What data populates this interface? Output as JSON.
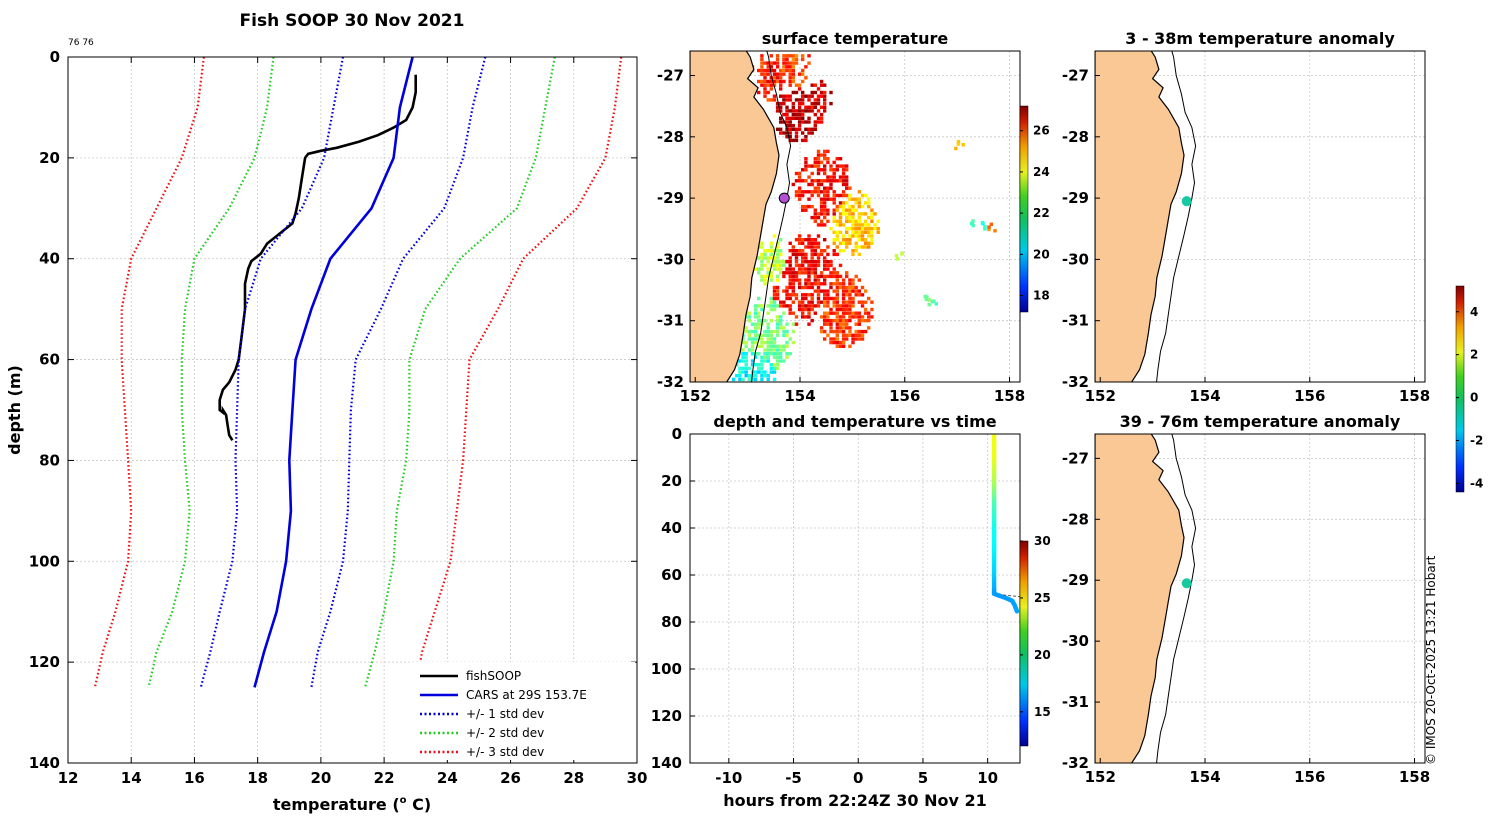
{
  "profile": {
    "title": "Fish SOOP 30 Nov 2021",
    "corner_label": "76 76",
    "xlabel": "temperature (",
    "xlabel_sup": "o",
    "xlabel_unit": " C)",
    "ylabel": "depth (m)",
    "xlim": [
      12,
      30
    ],
    "ylim": [
      0,
      140
    ],
    "xticks": [
      12,
      14,
      16,
      18,
      20,
      22,
      24,
      26,
      28,
      30
    ],
    "yticks": [
      0,
      20,
      40,
      60,
      80,
      100,
      120,
      140
    ],
    "legend": [
      {
        "label": "fishSOOP",
        "color": "#000000",
        "dash": "solid"
      },
      {
        "label": "CARS at 29S 153.7E",
        "color": "#0000dd",
        "dash": "solid"
      },
      {
        "label": "+/- 1 std dev",
        "color": "#0000dd",
        "dash": "dotted"
      },
      {
        "label": "+/- 2 std dev",
        "color": "#22cc22",
        "dash": "dotted"
      },
      {
        "label": "+/- 3 std dev",
        "color": "#ee1111",
        "dash": "dotted"
      }
    ]
  },
  "chart_data": [
    {
      "type": "line",
      "title": "Fish SOOP 30 Nov 2021",
      "xlabel": "temperature (o C)",
      "ylabel": "depth (m)",
      "xlim": [
        12,
        30
      ],
      "ylim": [
        0,
        140
      ],
      "y_reversed": true,
      "series": [
        {
          "name": "fishSOOP",
          "color": "#000000",
          "style": "solid",
          "points": [
            [
              23.0,
              3.5
            ],
            [
              23.0,
              7
            ],
            [
              22.9,
              10
            ],
            [
              22.7,
              12.5
            ],
            [
              22.3,
              14
            ],
            [
              21.8,
              15.5
            ],
            [
              21.2,
              16.8
            ],
            [
              20.5,
              18
            ],
            [
              20.0,
              18.6
            ],
            [
              19.6,
              19.2
            ],
            [
              19.5,
              20
            ],
            [
              19.4,
              24
            ],
            [
              19.3,
              28
            ],
            [
              19.2,
              31
            ],
            [
              19.1,
              33
            ],
            [
              18.7,
              35
            ],
            [
              18.3,
              37
            ],
            [
              18.1,
              39
            ],
            [
              17.8,
              40.5
            ],
            [
              17.7,
              42
            ],
            [
              17.6,
              45
            ],
            [
              17.6,
              50
            ],
            [
              17.5,
              55
            ],
            [
              17.4,
              60
            ],
            [
              17.3,
              62
            ],
            [
              17.1,
              64.5
            ],
            [
              16.9,
              66
            ],
            [
              16.8,
              68
            ],
            [
              16.8,
              70
            ],
            [
              16.9,
              70.5
            ],
            [
              16.9,
              70
            ],
            [
              17.0,
              71
            ],
            [
              17.05,
              73
            ],
            [
              17.1,
              75
            ],
            [
              17.2,
              76
            ]
          ]
        },
        {
          "name": "CARS at 29S 153.7E",
          "color": "#0000dd",
          "style": "solid",
          "points": [
            [
              22.9,
              0
            ],
            [
              22.5,
              10
            ],
            [
              22.3,
              20
            ],
            [
              21.6,
              30
            ],
            [
              20.3,
              40
            ],
            [
              19.7,
              50
            ],
            [
              19.2,
              60
            ],
            [
              19.1,
              70
            ],
            [
              19.0,
              80
            ],
            [
              19.05,
              90
            ],
            [
              18.9,
              100
            ],
            [
              18.6,
              110
            ],
            [
              18.2,
              118
            ],
            [
              17.9,
              125
            ]
          ]
        },
        {
          "name": "-1 std dev",
          "color": "#0000dd",
          "style": "dotted",
          "points": [
            [
              20.7,
              0
            ],
            [
              20.4,
              10
            ],
            [
              20.1,
              20
            ],
            [
              19.4,
              30
            ],
            [
              18.1,
              40
            ],
            [
              17.6,
              50
            ],
            [
              17.4,
              60
            ],
            [
              17.35,
              70
            ],
            [
              17.3,
              80
            ],
            [
              17.35,
              90
            ],
            [
              17.2,
              100
            ],
            [
              16.8,
              110
            ],
            [
              16.5,
              118
            ],
            [
              16.2,
              125
            ]
          ]
        },
        {
          "name": "+1 std dev",
          "color": "#0000dd",
          "style": "dotted",
          "points": [
            [
              25.2,
              0
            ],
            [
              24.8,
              10
            ],
            [
              24.5,
              20
            ],
            [
              23.9,
              30
            ],
            [
              22.6,
              40
            ],
            [
              21.9,
              50
            ],
            [
              21.1,
              60
            ],
            [
              20.95,
              70
            ],
            [
              20.9,
              80
            ],
            [
              20.85,
              90
            ],
            [
              20.7,
              100
            ],
            [
              20.3,
              110
            ],
            [
              19.9,
              118
            ],
            [
              19.7,
              125
            ]
          ]
        },
        {
          "name": "-2 std dev",
          "color": "#22cc22",
          "style": "dotted",
          "points": [
            [
              18.5,
              0
            ],
            [
              18.3,
              10
            ],
            [
              17.9,
              20
            ],
            [
              17.1,
              30
            ],
            [
              16.0,
              40
            ],
            [
              15.7,
              50
            ],
            [
              15.6,
              60
            ],
            [
              15.6,
              70
            ],
            [
              15.7,
              80
            ],
            [
              15.85,
              90
            ],
            [
              15.7,
              100
            ],
            [
              15.3,
              110
            ],
            [
              14.8,
              118
            ],
            [
              14.55,
              125
            ]
          ]
        },
        {
          "name": "+2 std dev",
          "color": "#22cc22",
          "style": "dotted",
          "points": [
            [
              27.4,
              0
            ],
            [
              27.1,
              10
            ],
            [
              26.8,
              20
            ],
            [
              26.2,
              30
            ],
            [
              24.4,
              40
            ],
            [
              23.3,
              50
            ],
            [
              22.8,
              60
            ],
            [
              22.8,
              70
            ],
            [
              22.7,
              80
            ],
            [
              22.4,
              90
            ],
            [
              22.3,
              100
            ],
            [
              22.0,
              110
            ],
            [
              21.7,
              118
            ],
            [
              21.4,
              125
            ]
          ]
        },
        {
          "name": "-3 std dev",
          "color": "#ee1111",
          "style": "dotted",
          "points": [
            [
              16.3,
              0
            ],
            [
              16.1,
              10
            ],
            [
              15.6,
              20
            ],
            [
              14.8,
              30
            ],
            [
              14.0,
              40
            ],
            [
              13.7,
              50
            ],
            [
              13.7,
              60
            ],
            [
              13.8,
              70
            ],
            [
              13.9,
              80
            ],
            [
              14.0,
              90
            ],
            [
              13.9,
              100
            ],
            [
              13.5,
              110
            ],
            [
              13.1,
              118
            ],
            [
              12.85,
              125
            ]
          ]
        },
        {
          "name": "+3 std dev",
          "color": "#ee1111",
          "style": "dotted",
          "points": [
            [
              29.5,
              0
            ],
            [
              29.3,
              10
            ],
            [
              29.0,
              20
            ],
            [
              28.1,
              30
            ],
            [
              26.4,
              40
            ],
            [
              25.6,
              50
            ],
            [
              24.7,
              60
            ],
            [
              24.6,
              70
            ],
            [
              24.5,
              80
            ],
            [
              24.3,
              90
            ],
            [
              24.1,
              100
            ],
            [
              23.6,
              110
            ],
            [
              23.2,
              118
            ],
            [
              23.0,
              125
            ]
          ]
        }
      ]
    },
    {
      "type": "map",
      "title": "surface temperature",
      "lon_range": [
        151.9,
        158.2
      ],
      "lat_range": [
        -32,
        -26.6
      ],
      "xticks": [
        152,
        154,
        156,
        158
      ],
      "yticks": [
        -27,
        -28,
        -29,
        -30,
        -31,
        -32
      ],
      "colorbar": {
        "min": 17.2,
        "max": 27.2,
        "ticks": [
          18,
          20,
          22,
          24,
          26
        ]
      },
      "marker": {
        "lon": 153.7,
        "lat": -29.0,
        "color": "#b34fd6"
      }
    },
    {
      "type": "scatter",
      "title": "depth and temperature vs time",
      "xlabel": "hours from 22:24Z 30 Nov 21",
      "xlim": [
        -13,
        12.5
      ],
      "ylim": [
        0,
        140
      ],
      "y_reversed": true,
      "xticks": [
        -10,
        -5,
        0,
        5,
        10
      ],
      "yticks": [
        0,
        20,
        40,
        60,
        80,
        100,
        120,
        140
      ],
      "colorbar": {
        "min": 12,
        "max": 30,
        "ticks": [
          15,
          20,
          25,
          30
        ]
      },
      "points": [
        [
          10.5,
          1,
          23.0
        ],
        [
          10.5,
          10,
          22.9
        ],
        [
          10.5,
          20,
          21.9
        ],
        [
          10.5,
          30,
          20.0
        ],
        [
          10.5,
          40,
          19.0
        ],
        [
          10.5,
          50,
          18.6
        ],
        [
          10.5,
          60,
          17.9
        ],
        [
          10.5,
          66,
          17.3
        ],
        [
          10.5,
          68,
          17.0
        ],
        [
          11.0,
          69,
          17.0
        ],
        [
          11.5,
          70,
          17.0
        ],
        [
          11.9,
          71,
          17.1
        ],
        [
          12.1,
          73,
          17.1
        ],
        [
          12.3,
          76,
          17.2
        ]
      ]
    },
    {
      "type": "map",
      "title": "3 - 38m temperature anomaly",
      "lon_range": [
        151.9,
        158.2
      ],
      "lat_range": [
        -32,
        -26.6
      ],
      "xticks": [
        152,
        154,
        156,
        158
      ],
      "yticks": [
        -27,
        -28,
        -29,
        -30,
        -31,
        -32
      ],
      "points": [
        {
          "lon": 153.65,
          "lat": -29.05,
          "value": -0.8
        }
      ],
      "colorbar": {
        "min": -4.4,
        "max": 5.2,
        "ticks": [
          -4,
          -2,
          0,
          2,
          4
        ]
      }
    },
    {
      "type": "map",
      "title": "39 - 76m temperature anomaly",
      "lon_range": [
        151.9,
        158.2
      ],
      "lat_range": [
        -32,
        -26.6
      ],
      "xticks": [
        152,
        154,
        156,
        158
      ],
      "yticks": [
        -27,
        -28,
        -29,
        -30,
        -31,
        -32
      ],
      "points": [
        {
          "lon": 153.65,
          "lat": -29.05,
          "value": -0.8
        }
      ]
    }
  ],
  "credit": "© IMOS 20-Oct-2025 13:21 Hobart"
}
